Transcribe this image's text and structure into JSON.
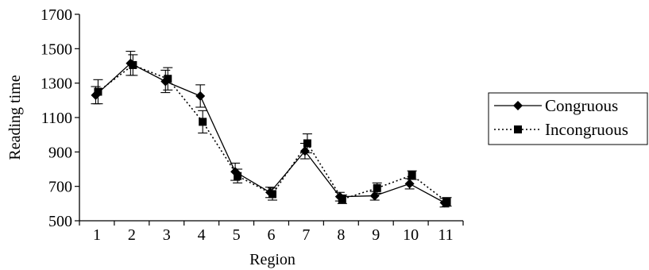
{
  "chart_data": {
    "type": "line",
    "xlabel": "Region",
    "ylabel": "Reading time",
    "categories": [
      "1",
      "2",
      "3",
      "4",
      "5",
      "6",
      "7",
      "8",
      "9",
      "10",
      "11"
    ],
    "ylim": [
      500,
      1700
    ],
    "yticks": [
      "500",
      "700",
      "900",
      "1100",
      "1300",
      "1500",
      "1700"
    ],
    "legend_position": "right",
    "grid": false,
    "series": [
      {
        "name": "Congruous",
        "marker": "diamond",
        "line_style": "solid",
        "values": [
          1230,
          1415,
          1310,
          1225,
          785,
          665,
          905,
          640,
          645,
          715,
          605
        ],
        "error": [
          50,
          70,
          65,
          65,
          50,
          30,
          45,
          25,
          25,
          30,
          25
        ]
      },
      {
        "name": "Incongruous",
        "marker": "square",
        "line_style": "dotted",
        "values": [
          1250,
          1405,
          1325,
          1075,
          760,
          655,
          950,
          625,
          690,
          765,
          610
        ],
        "error": [
          70,
          60,
          65,
          65,
          40,
          35,
          55,
          25,
          30,
          25,
          25
        ]
      }
    ],
    "colors": {
      "line": "#000000",
      "background": "#ffffff"
    }
  }
}
